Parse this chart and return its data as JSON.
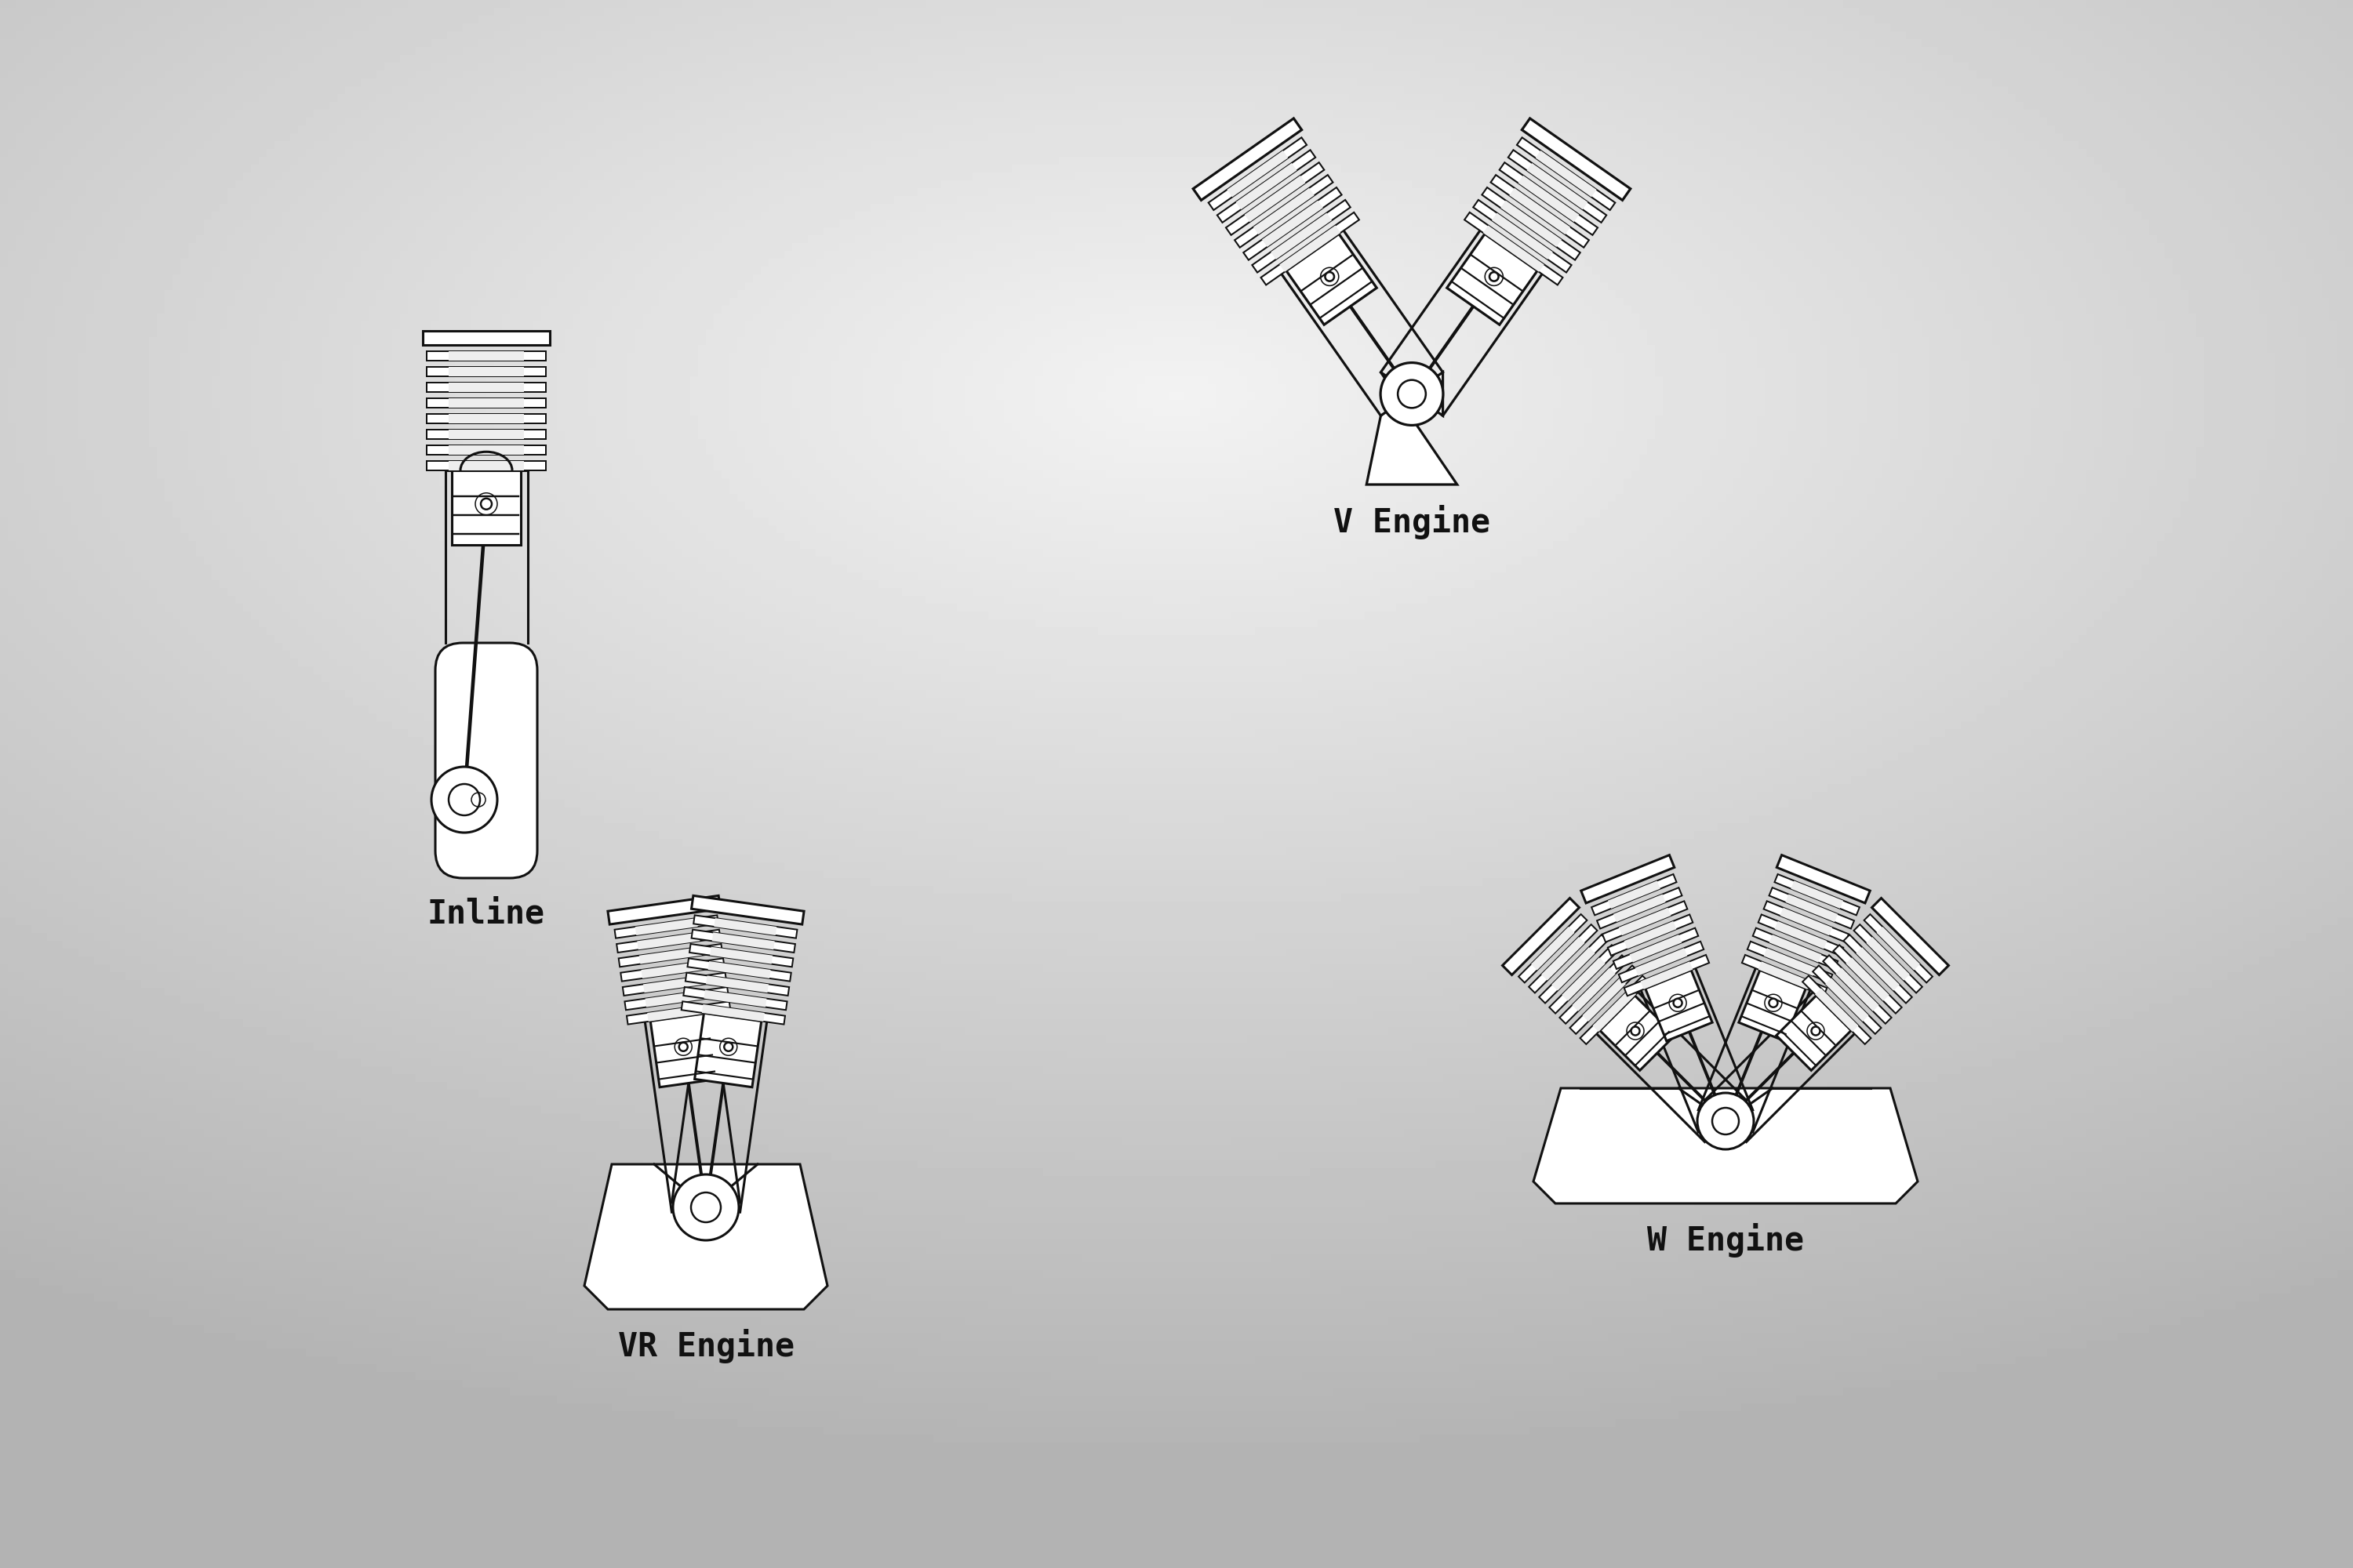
{
  "line_color": "#111111",
  "fill_color": "#ffffff",
  "line_width": 2.2,
  "labels": {
    "inline": "Inline",
    "v_engine": "V Engine",
    "vr_engine": "VR Engine",
    "w_engine": "W Engine"
  },
  "label_fontsize": 30,
  "label_fontfamily": "monospace",
  "label_fontweight": "bold"
}
